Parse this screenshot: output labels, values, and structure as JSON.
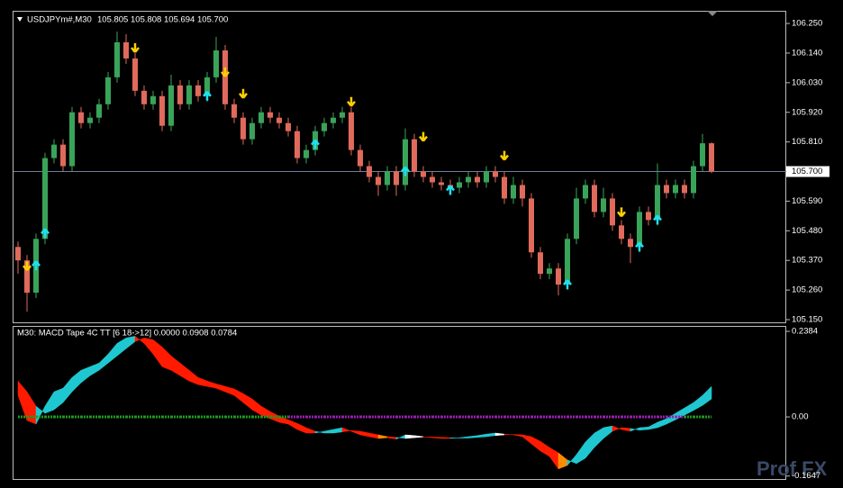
{
  "watermark": "Prof FX",
  "chart_data": [
    {
      "type": "candlestick",
      "symbol": "USDJPYm#,M30",
      "last_bar_labels": [
        "105.805",
        "105.808",
        "105.694",
        "105.700"
      ],
      "open": [
        105.42,
        105.37,
        105.25,
        105.45,
        105.75,
        105.8,
        105.72,
        105.92,
        105.88,
        105.9,
        105.95,
        106.05,
        106.18,
        106.12,
        106.0,
        105.95,
        105.98,
        105.87,
        106.02,
        105.95,
        106.02,
        105.98,
        106.05,
        106.15,
        105.95,
        105.9,
        105.82,
        105.88,
        105.92,
        105.9,
        105.88,
        105.85,
        105.75,
        105.78,
        105.85,
        105.88,
        105.9,
        105.92,
        105.78,
        105.72,
        105.68,
        105.65,
        105.7,
        105.65,
        105.82,
        105.7,
        105.68,
        105.66,
        105.65,
        105.64,
        105.66,
        105.68,
        105.66,
        105.7,
        105.68,
        105.6,
        105.65,
        105.6,
        105.4,
        105.32,
        105.34,
        105.28,
        105.45,
        105.6,
        105.65,
        105.55,
        105.6,
        105.5,
        105.45,
        105.42,
        105.55,
        105.52,
        105.65,
        105.62,
        105.65,
        105.62,
        105.72,
        105.805
      ],
      "high": [
        105.44,
        105.39,
        105.47,
        105.77,
        105.82,
        105.82,
        105.94,
        105.94,
        105.92,
        105.97,
        106.07,
        106.22,
        106.21,
        106.14,
        106.02,
        106.0,
        106.0,
        106.06,
        106.04,
        106.04,
        106.04,
        106.07,
        106.2,
        106.17,
        105.97,
        105.92,
        105.9,
        105.94,
        105.94,
        105.92,
        105.9,
        105.87,
        105.8,
        105.87,
        105.9,
        105.92,
        105.94,
        105.94,
        105.8,
        105.74,
        105.7,
        105.72,
        105.72,
        105.86,
        105.84,
        105.72,
        105.7,
        105.68,
        105.67,
        105.68,
        105.7,
        105.7,
        105.72,
        105.72,
        105.7,
        105.68,
        105.67,
        105.62,
        105.42,
        105.36,
        105.36,
        105.47,
        105.64,
        105.67,
        105.67,
        105.64,
        105.62,
        105.52,
        105.47,
        105.57,
        105.57,
        105.73,
        105.67,
        105.67,
        105.67,
        105.74,
        105.84,
        105.808
      ],
      "low": [
        105.32,
        105.18,
        105.23,
        105.43,
        105.73,
        105.7,
        105.7,
        105.86,
        105.86,
        105.88,
        105.93,
        106.03,
        106.1,
        105.98,
        105.93,
        105.93,
        105.85,
        105.85,
        105.93,
        105.93,
        105.96,
        105.96,
        106.03,
        105.93,
        105.88,
        105.8,
        105.8,
        105.86,
        105.88,
        105.86,
        105.83,
        105.73,
        105.73,
        105.76,
        105.83,
        105.86,
        105.88,
        105.76,
        105.7,
        105.66,
        105.61,
        105.63,
        105.61,
        105.63,
        105.68,
        105.66,
        105.64,
        105.63,
        105.62,
        105.62,
        105.64,
        105.64,
        105.64,
        105.66,
        105.58,
        105.58,
        105.57,
        105.38,
        105.3,
        105.3,
        105.24,
        105.26,
        105.43,
        105.58,
        105.53,
        105.53,
        105.48,
        105.43,
        105.36,
        105.4,
        105.5,
        105.5,
        105.6,
        105.6,
        105.6,
        105.6,
        105.7,
        105.694
      ],
      "close": [
        105.37,
        105.25,
        105.45,
        105.75,
        105.8,
        105.72,
        105.92,
        105.88,
        105.9,
        105.95,
        106.05,
        106.18,
        106.12,
        106.0,
        105.95,
        105.98,
        105.87,
        106.02,
        105.95,
        106.02,
        105.98,
        106.05,
        106.15,
        105.95,
        105.9,
        105.82,
        105.88,
        105.92,
        105.9,
        105.88,
        105.85,
        105.75,
        105.78,
        105.85,
        105.88,
        105.9,
        105.92,
        105.78,
        105.72,
        105.68,
        105.65,
        105.7,
        105.65,
        105.82,
        105.7,
        105.68,
        105.66,
        105.65,
        105.64,
        105.66,
        105.68,
        105.66,
        105.7,
        105.68,
        105.6,
        105.65,
        105.6,
        105.4,
        105.32,
        105.34,
        105.28,
        105.45,
        105.6,
        105.65,
        105.55,
        105.6,
        105.5,
        105.45,
        105.42,
        105.55,
        105.52,
        105.65,
        105.62,
        105.65,
        105.62,
        105.72,
        105.805,
        105.7
      ],
      "up_color": "#3aa35a",
      "down_color": "#e06a5c",
      "down_arrows": {
        "x": [
          1,
          13,
          23,
          25,
          37,
          45,
          54,
          67
        ],
        "y": [
          105.35,
          106.16,
          106.07,
          105.99,
          105.96,
          105.83,
          105.76,
          105.55
        ],
        "color": "#ffd000"
      },
      "up_arrows": {
        "x": [
          2,
          3,
          21,
          33,
          43,
          48,
          61,
          69,
          71
        ],
        "y": [
          105.35,
          105.47,
          105.98,
          105.8,
          105.7,
          105.63,
          105.28,
          105.42,
          105.52
        ],
        "color": "#1fe0f0"
      },
      "current_price": {
        "value": 105.7,
        "label": "105.700"
      },
      "ylim": [
        105.14,
        106.297
      ],
      "yticks": [
        {
          "value": 106.25,
          "label": "106.250"
        },
        {
          "value": 106.14,
          "label": "106.140"
        },
        {
          "value": 106.03,
          "label": "106.030"
        },
        {
          "value": 105.92,
          "label": "105.920"
        },
        {
          "value": 105.81,
          "label": "105.810"
        },
        {
          "value": 105.59,
          "label": "105.590"
        },
        {
          "value": 105.48,
          "label": "105.480"
        },
        {
          "value": 105.37,
          "label": "105.370"
        },
        {
          "value": 105.26,
          "label": "105.260"
        },
        {
          "value": 105.15,
          "label": "105.150"
        }
      ]
    },
    {
      "type": "macd",
      "title": "M30: MACD Tape 4C TT [6 18->12] 0.0000 0.0908 0.0784",
      "macd": [
        0.06,
        -0.01,
        -0.02,
        0.03,
        0.07,
        0.08,
        0.11,
        0.13,
        0.14,
        0.15,
        0.175,
        0.205,
        0.22,
        0.225,
        0.205,
        0.175,
        0.14,
        0.13,
        0.115,
        0.1,
        0.09,
        0.085,
        0.08,
        0.07,
        0.06,
        0.04,
        0.02,
        0.005,
        -0.005,
        -0.015,
        -0.02,
        -0.035,
        -0.045,
        -0.045,
        -0.04,
        -0.035,
        -0.03,
        -0.04,
        -0.05,
        -0.055,
        -0.06,
        -0.058,
        -0.062,
        -0.05,
        -0.052,
        -0.055,
        -0.058,
        -0.06,
        -0.06,
        -0.058,
        -0.055,
        -0.052,
        -0.048,
        -0.045,
        -0.048,
        -0.05,
        -0.055,
        -0.075,
        -0.095,
        -0.11,
        -0.145,
        -0.135,
        -0.105,
        -0.07,
        -0.045,
        -0.03,
        -0.025,
        -0.035,
        -0.04,
        -0.03,
        -0.028,
        -0.015,
        -0.005,
        0.01,
        0.025,
        0.04,
        0.06,
        0.085
      ],
      "signal": [
        0.1,
        0.07,
        0.03,
        0.01,
        0.02,
        0.04,
        0.07,
        0.095,
        0.115,
        0.13,
        0.15,
        0.17,
        0.19,
        0.21,
        0.22,
        0.215,
        0.195,
        0.17,
        0.15,
        0.13,
        0.11,
        0.1,
        0.092,
        0.085,
        0.078,
        0.065,
        0.05,
        0.03,
        0.015,
        0.002,
        -0.008,
        -0.018,
        -0.03,
        -0.04,
        -0.045,
        -0.045,
        -0.042,
        -0.038,
        -0.04,
        -0.045,
        -0.05,
        -0.055,
        -0.057,
        -0.06,
        -0.058,
        -0.056,
        -0.056,
        -0.057,
        -0.058,
        -0.059,
        -0.059,
        -0.057,
        -0.055,
        -0.052,
        -0.05,
        -0.049,
        -0.05,
        -0.055,
        -0.068,
        -0.085,
        -0.1,
        -0.12,
        -0.13,
        -0.115,
        -0.085,
        -0.06,
        -0.04,
        -0.03,
        -0.032,
        -0.037,
        -0.035,
        -0.03,
        -0.02,
        -0.008,
        0.005,
        0.018,
        0.032,
        0.05
      ],
      "colors": [
        "#1fc8d0",
        "#ffffff",
        "#ff1a00",
        "#ff8c00"
      ],
      "zero_colors": [
        "#1f9a1f",
        "#9a1fb0"
      ],
      "ylim": [
        -0.173,
        0.2535
      ],
      "yticks": [
        0.2384,
        {
          "value": 0,
          "label": "0.00"
        },
        -0.1647
      ]
    }
  ]
}
